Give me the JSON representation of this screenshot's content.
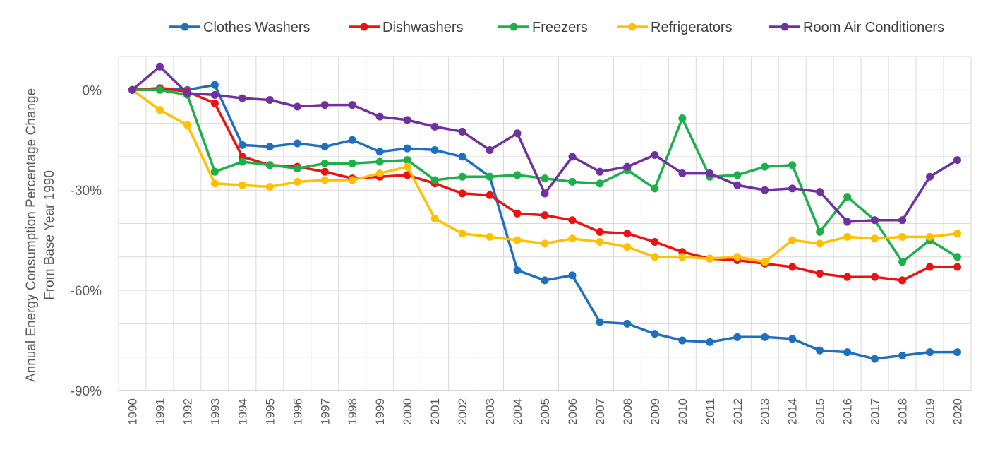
{
  "chart_data": {
    "type": "line",
    "title": "",
    "ylabel": [
      "Annual Energy Consumption Percentage Change",
      "From Base Year 1990"
    ],
    "xlabel": "",
    "ylim": [
      -90,
      10
    ],
    "y_ticks": [
      0,
      -30,
      -60,
      -90
    ],
    "y_tick_labels": [
      "0%",
      "-30%",
      "-60%",
      "-90%"
    ],
    "grid": true,
    "legend_position": "top",
    "categories": [
      "1990",
      "1991",
      "1992",
      "1993",
      "1994",
      "1995",
      "1996",
      "1997",
      "1998",
      "1999",
      "2000",
      "2001",
      "2002",
      "2003",
      "2004",
      "2005",
      "2006",
      "2007",
      "2008",
      "2009",
      "2010",
      "2011",
      "2012",
      "2013",
      "2014",
      "2015",
      "2016",
      "2017",
      "2018",
      "2019",
      "2020"
    ],
    "series": [
      {
        "name": "Clothes Washers",
        "color": "#1F6FBF",
        "values": [
          0,
          0.5,
          0,
          1.5,
          -16.5,
          -17,
          -16,
          -17,
          -15,
          -18.5,
          -17.5,
          -18,
          -20,
          -26,
          -54,
          -57,
          -55.5,
          -69.5,
          -70,
          -73,
          -75,
          -75.5,
          -74,
          -74,
          -74.5,
          -78,
          -78.5,
          -80.5,
          -79.5,
          -78.5,
          -78.5
        ]
      },
      {
        "name": "Dishwashers",
        "color": "#EE1111",
        "values": [
          0,
          0.5,
          -0.5,
          -4,
          -20,
          -22.5,
          -23,
          -24.5,
          -26.5,
          -26,
          -25.5,
          -28,
          -31,
          -31.5,
          -37,
          -37.5,
          -39,
          -42.5,
          -43,
          -45.5,
          -48.5,
          -50.5,
          -51,
          -52,
          -53,
          -55,
          -56,
          -56,
          -57,
          -53,
          -53
        ]
      },
      {
        "name": "Freezers",
        "color": "#1CAF4A",
        "values": [
          0,
          0,
          -1.5,
          -24.5,
          -21.5,
          -22.5,
          -23.5,
          -22,
          -22,
          -21.5,
          -21,
          -27,
          -26,
          -26,
          -25.5,
          -26.5,
          -27.5,
          -28,
          -24,
          -29.5,
          -8.5,
          -26,
          -25.5,
          -23,
          -22.5,
          -42.5,
          -32,
          -39,
          -51.5,
          -45,
          -50
        ]
      },
      {
        "name": "Refrigerators",
        "color": "#FFC000",
        "values": [
          0,
          -6,
          -10.5,
          -28,
          -28.5,
          -29,
          -27.5,
          -27,
          -27,
          -25,
          -23,
          -38.5,
          -43,
          -44,
          -45,
          -46,
          -44.5,
          -45.5,
          -47,
          -50,
          -50,
          -50.5,
          -50,
          -51.5,
          -45,
          -46,
          -44,
          -44.5,
          -44,
          -44,
          -43
        ]
      },
      {
        "name": "Room Air Conditioners",
        "color": "#7030A0",
        "values": [
          0,
          7,
          -1,
          -1.5,
          -2.5,
          -3,
          -5,
          -4.5,
          -4.5,
          -8,
          -9,
          -11,
          -12.5,
          -18,
          -13,
          -31,
          -20,
          -24.5,
          -23,
          -19.5,
          -25,
          -25,
          -28.5,
          -30,
          -29.5,
          -30.5,
          -39.5,
          -39,
          -39,
          -26,
          -21
        ]
      }
    ]
  }
}
